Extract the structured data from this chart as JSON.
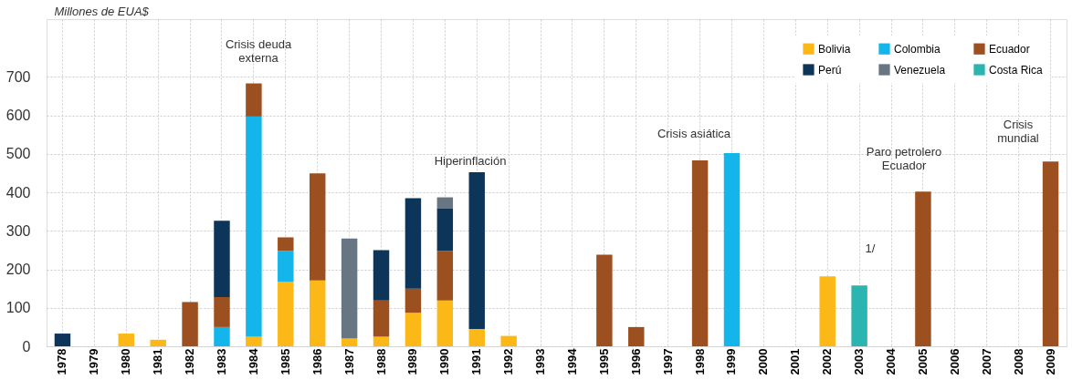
{
  "chart_data": {
    "type": "bar",
    "stacked": true,
    "ylabel": "Millones de EUA$",
    "categories": [
      "1978",
      "1979",
      "1980",
      "1981",
      "1982",
      "1983",
      "1984",
      "1985",
      "1986",
      "1987",
      "1988",
      "1989",
      "1990",
      "1991",
      "1992",
      "1993",
      "1994",
      "1995",
      "1996",
      "1997",
      "1998",
      "1999",
      "2000",
      "2001",
      "2002",
      "2003",
      "2004",
      "2005",
      "2006",
      "2007",
      "2008",
      "2009"
    ],
    "series": [
      {
        "name": "Bolivia",
        "color": "#fbb817",
        "values": [
          null,
          null,
          33,
          17,
          null,
          null,
          25,
          168,
          171,
          20,
          25,
          87,
          119,
          45,
          27,
          null,
          null,
          null,
          null,
          null,
          null,
          null,
          null,
          null,
          182,
          null,
          null,
          null,
          null,
          null,
          null,
          null
        ]
      },
      {
        "name": "Colombia",
        "color": "#13b5ea",
        "values": [
          null,
          null,
          null,
          null,
          null,
          50,
          572,
          80,
          null,
          null,
          null,
          null,
          null,
          null,
          null,
          null,
          null,
          null,
          null,
          null,
          null,
          502,
          null,
          null,
          null,
          null,
          null,
          null,
          null,
          null,
          null,
          null
        ]
      },
      {
        "name": "Ecuador",
        "color": "#9c4f1f",
        "values": [
          null,
          null,
          null,
          null,
          115,
          78,
          86,
          35,
          278,
          null,
          94,
          63,
          129,
          null,
          null,
          null,
          null,
          238,
          50,
          null,
          483,
          null,
          null,
          null,
          null,
          null,
          null,
          402,
          null,
          null,
          null,
          480
        ]
      },
      {
        "name": "Perú",
        "color": "#0d3559",
        "values": [
          33,
          null,
          null,
          null,
          null,
          198,
          null,
          null,
          null,
          null,
          131,
          235,
          111,
          407,
          null,
          null,
          null,
          null,
          null,
          null,
          null,
          null,
          null,
          null,
          null,
          null,
          null,
          null,
          null,
          null,
          null,
          null
        ]
      },
      {
        "name": "Venezuela",
        "color": "#687583",
        "values": [
          null,
          null,
          null,
          null,
          null,
          null,
          null,
          null,
          null,
          260,
          null,
          null,
          28,
          null,
          null,
          null,
          null,
          null,
          null,
          null,
          null,
          null,
          null,
          null,
          null,
          null,
          null,
          null,
          null,
          null,
          null,
          null
        ]
      },
      {
        "name": "Costa Rica",
        "color": "#2bb5b0",
        "values": [
          null,
          null,
          null,
          null,
          null,
          null,
          null,
          null,
          null,
          null,
          null,
          null,
          null,
          null,
          null,
          null,
          null,
          null,
          null,
          null,
          null,
          null,
          null,
          null,
          null,
          158,
          null,
          null,
          null,
          null,
          null,
          null
        ]
      }
    ],
    "ylim": [
      0,
      850
    ],
    "yticks": [
      0,
      100,
      200,
      300,
      400,
      500,
      600,
      700
    ],
    "grid": true,
    "legend": "top right",
    "annotations": [
      "Crisis deuda\nexterna",
      "Hiperinflación",
      "Crisis asiática",
      "1/",
      "Paro petrolero\nEcuador",
      "Crisis\nmundial"
    ]
  }
}
